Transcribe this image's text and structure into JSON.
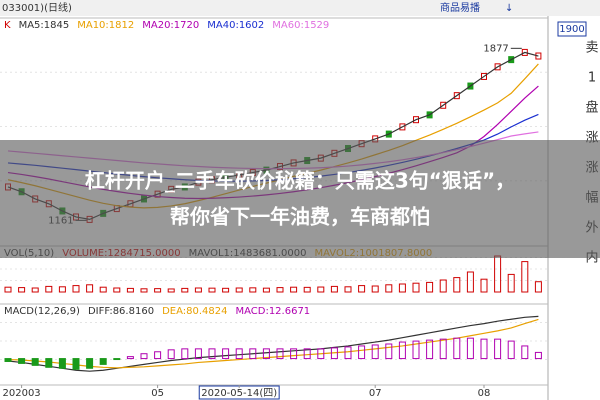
{
  "header": {
    "code": "033001)(日线)",
    "toolbar": [
      "商品易播",
      "↓",
      "1900"
    ]
  },
  "sidebar": [
    "卖",
    "1",
    "盘",
    "涨",
    "涨",
    "幅",
    "外",
    "内"
  ],
  "overlay": {
    "line1": "杠杆开户_二手车砍价秘籍：只需这3句“狠话”，",
    "line2": "帮你省下一年油费，车商都怕"
  },
  "chart_data": [
    {
      "type": "line",
      "ylim": [
        1100,
        1920
      ],
      "series": [
        {
          "name": "K",
          "color": "#d00000",
          "values": [
            1300,
            1280,
            1250,
            1230,
            1200,
            1175,
            1165,
            1190,
            1210,
            1230,
            1250,
            1270,
            1290,
            1300,
            1320,
            1330,
            1340,
            1350,
            1360,
            1370,
            1385,
            1400,
            1410,
            1420,
            1440,
            1460,
            1480,
            1500,
            1520,
            1550,
            1580,
            1600,
            1640,
            1680,
            1720,
            1760,
            1800,
            1830,
            1860,
            1845
          ]
        },
        {
          "name": "MA5:1845",
          "color": "#333333",
          "values": [
            1300,
            1280,
            1250,
            1230,
            1200,
            1175,
            1165,
            1190,
            1210,
            1230,
            1250,
            1270,
            1290,
            1300,
            1320,
            1330,
            1340,
            1350,
            1360,
            1370,
            1385,
            1400,
            1410,
            1420,
            1440,
            1460,
            1480,
            1500,
            1520,
            1550,
            1580,
            1600,
            1640,
            1680,
            1720,
            1760,
            1800,
            1830,
            1860,
            1845
          ]
        },
        {
          "name": "MA10:1812",
          "color": "#e8a000",
          "values": [
            1330,
            1318,
            1305,
            1290,
            1275,
            1260,
            1245,
            1232,
            1222,
            1216,
            1213,
            1215,
            1221,
            1230,
            1243,
            1257,
            1272,
            1287,
            1302,
            1316,
            1330,
            1344,
            1357,
            1370,
            1385,
            1400,
            1416,
            1434,
            1452,
            1472,
            1494,
            1516,
            1540,
            1565,
            1592,
            1620,
            1650,
            1690,
            1750,
            1812
          ]
        },
        {
          "name": "MA20:1720",
          "color": "#b000b0",
          "values": [
            1360,
            1352,
            1343,
            1333,
            1322,
            1311,
            1300,
            1290,
            1281,
            1273,
            1266,
            1260,
            1256,
            1253,
            1252,
            1253,
            1255,
            1258,
            1262,
            1267,
            1273,
            1280,
            1288,
            1297,
            1307,
            1318,
            1330,
            1343,
            1357,
            1372,
            1388,
            1405,
            1423,
            1442,
            1470,
            1510,
            1560,
            1615,
            1670,
            1720
          ]
        },
        {
          "name": "MA40:1602",
          "color": "#1a2fd0",
          "values": [
            1400,
            1395,
            1390,
            1384,
            1378,
            1372,
            1366,
            1360,
            1354,
            1348,
            1343,
            1338,
            1334,
            1330,
            1327,
            1325,
            1324,
            1324,
            1325,
            1327,
            1330,
            1334,
            1339,
            1345,
            1352,
            1360,
            1369,
            1379,
            1390,
            1402,
            1415,
            1429,
            1444,
            1460,
            1477,
            1495,
            1520,
            1550,
            1578,
            1602
          ]
        },
        {
          "name": "MA60:1529",
          "color": "#e070e0",
          "values": [
            1450,
            1445,
            1440,
            1435,
            1430,
            1425,
            1420,
            1415,
            1410,
            1405,
            1400,
            1396,
            1392,
            1388,
            1385,
            1382,
            1380,
            1378,
            1377,
            1376,
            1376,
            1377,
            1378,
            1380,
            1383,
            1387,
            1392,
            1398,
            1405,
            1413,
            1422,
            1432,
            1443,
            1455,
            1468,
            1482,
            1497,
            1512,
            1521,
            1529
          ]
        }
      ],
      "annotations": [
        {
          "label": "1877",
          "value": 1877,
          "x": 38
        },
        {
          "label": "1161",
          "value": 1161,
          "x": 6
        }
      ]
    },
    {
      "type": "bar",
      "title": "VOL(5,10)",
      "ylim": [
        0,
        5000000
      ],
      "series": [
        {
          "name": "VOLUME:1284715.0000",
          "color": "#d00000",
          "values": [
            600000,
            550000,
            500000,
            700000,
            650000,
            800000,
            900000,
            600000,
            500000,
            450000,
            400000,
            420000,
            380000,
            450000,
            500000,
            480000,
            460000,
            500000,
            520000,
            480000,
            550000,
            600000,
            580000,
            620000,
            700000,
            650000,
            800000,
            750000,
            900000,
            1000000,
            1100000,
            1200000,
            1500000,
            1800000,
            2500000,
            1600000,
            4500000,
            2200000,
            3800000,
            1284715
          ]
        },
        {
          "name": "MAVOL1:1483681.0000",
          "color": "#333333",
          "values": []
        },
        {
          "name": "MAVOL2:1001807.8000",
          "color": "#e8a000",
          "values": []
        }
      ]
    },
    {
      "type": "line",
      "title": "MACD(12,26,9)",
      "ylim": [
        -40,
        100
      ],
      "categories": [
        null,
        "202003",
        null,
        null,
        null,
        null,
        null,
        null,
        null,
        null,
        null,
        "05",
        null,
        null,
        null,
        null,
        null,
        "2020-05-14(四)",
        null,
        null,
        null,
        null,
        null,
        null,
        null,
        null,
        null,
        "07",
        null,
        null,
        null,
        null,
        null,
        null,
        null,
        "08",
        null,
        null,
        null,
        null
      ],
      "series": [
        {
          "name": "DIFF:86.8160",
          "color": "#333333",
          "values": [
            -5,
            -8,
            -12,
            -16,
            -20,
            -24,
            -26,
            -24,
            -20,
            -16,
            -12,
            -8,
            -4,
            -1,
            2,
            4,
            6,
            8,
            10,
            12,
            14,
            16,
            18,
            20,
            23,
            26,
            30,
            34,
            38,
            43,
            48,
            53,
            58,
            63,
            68,
            72,
            77,
            81,
            85,
            86.816
          ]
        },
        {
          "name": "DEA:80.4824",
          "color": "#e8a000",
          "values": [
            -2,
            -3,
            -5,
            -7,
            -10,
            -13,
            -16,
            -18,
            -19,
            -18,
            -17,
            -15,
            -13,
            -11,
            -8,
            -6,
            -4,
            -2,
            0,
            2,
            4,
            6,
            8,
            10,
            12,
            14,
            17,
            20,
            23,
            26,
            30,
            34,
            38,
            42,
            47,
            52,
            57,
            63,
            72,
            80.4824
          ]
        },
        {
          "name": "MACD:12.6671",
          "color": "#b000b0",
          "type": "bar",
          "values": [
            -6,
            -10,
            -14,
            -18,
            -20,
            -22,
            -20,
            -12,
            -2,
            4,
            10,
            14,
            18,
            20,
            20,
            20,
            20,
            20,
            20,
            20,
            20,
            20,
            20,
            20,
            22,
            24,
            26,
            28,
            30,
            34,
            36,
            38,
            40,
            42,
            42,
            40,
            40,
            36,
            26,
            12.6671
          ]
        }
      ]
    }
  ]
}
